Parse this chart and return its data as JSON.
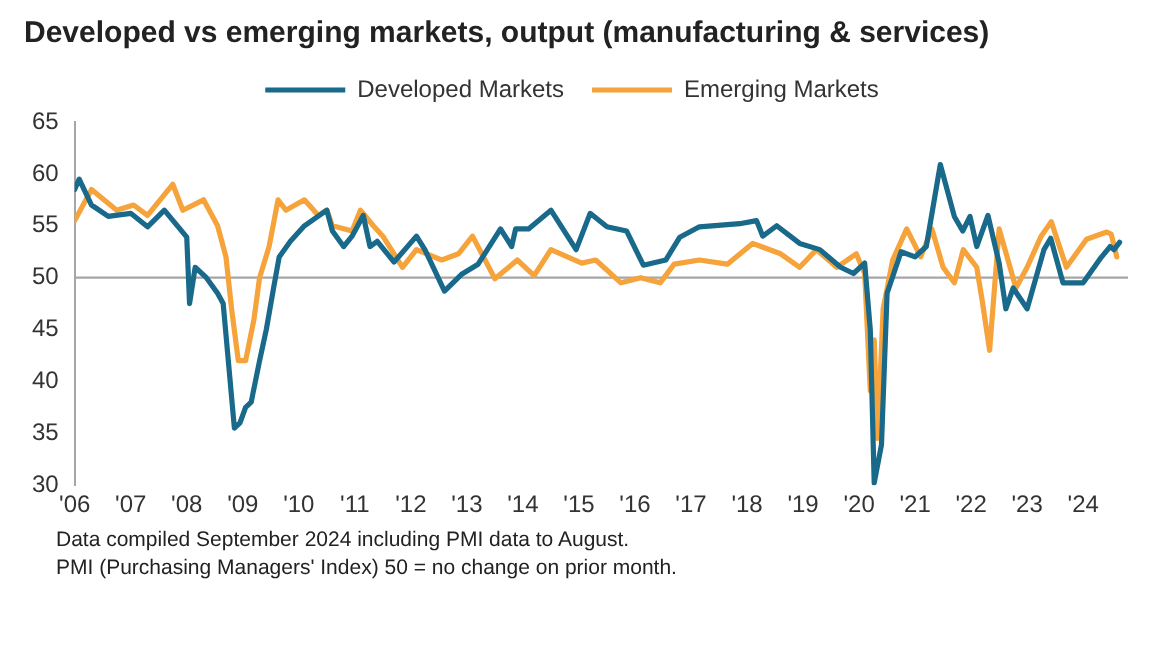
{
  "chart_data": {
    "type": "line",
    "title": "Developed vs emerging markets, output (manufacturing & services)",
    "annotations": [
      "Data compiled September 2024 including PMI data to August.",
      "PMI (Purchasing Managers' Index) 50 = no change on prior month."
    ],
    "xlim": [
      2006,
      2024.8
    ],
    "ylim": [
      30,
      65
    ],
    "xticks": [
      {
        "value": 2006,
        "label": "'06"
      },
      {
        "value": 2007,
        "label": "'07"
      },
      {
        "value": 2008,
        "label": "'08"
      },
      {
        "value": 2009,
        "label": "'09"
      },
      {
        "value": 2010,
        "label": "'10"
      },
      {
        "value": 2011,
        "label": "'11"
      },
      {
        "value": 2012,
        "label": "'12"
      },
      {
        "value": 2013,
        "label": "'13"
      },
      {
        "value": 2014,
        "label": "'14"
      },
      {
        "value": 2015,
        "label": "'15"
      },
      {
        "value": 2016,
        "label": "'16"
      },
      {
        "value": 2017,
        "label": "'17"
      },
      {
        "value": 2018,
        "label": "'18"
      },
      {
        "value": 2019,
        "label": "'19"
      },
      {
        "value": 2020,
        "label": "'20"
      },
      {
        "value": 2021,
        "label": "'21"
      },
      {
        "value": 2022,
        "label": "'22"
      },
      {
        "value": 2023,
        "label": "'23"
      },
      {
        "value": 2024,
        "label": "'24"
      }
    ],
    "yticks": [
      30,
      35,
      40,
      45,
      50,
      55,
      60,
      65
    ],
    "grid": false,
    "legend": "top",
    "marker": "none",
    "line_style": "solid",
    "ref_lines": [
      {
        "axis": "y",
        "value": 50,
        "color": "#a6a6a6"
      }
    ],
    "series": [
      {
        "name": "Developed Markets",
        "color": "#19698a",
        "x": [
          2006.0,
          2006.08,
          2006.3,
          2006.6,
          2007.0,
          2007.3,
          2007.6,
          2008.0,
          2008.05,
          2008.15,
          2008.35,
          2008.55,
          2008.65,
          2008.85,
          2008.95,
          2009.05,
          2009.15,
          2009.3,
          2009.42,
          2009.55,
          2009.65,
          2009.85,
          2010.1,
          2010.5,
          2010.6,
          2010.8,
          2010.95,
          2011.15,
          2011.27,
          2011.4,
          2011.7,
          2012.1,
          2012.25,
          2012.4,
          2012.6,
          2012.9,
          2013.2,
          2013.6,
          2013.8,
          2013.87,
          2014.1,
          2014.5,
          2014.95,
          2015.2,
          2015.5,
          2015.85,
          2016.15,
          2016.55,
          2016.8,
          2017.15,
          2017.87,
          2018.17,
          2018.28,
          2018.53,
          2018.94,
          2019.3,
          2019.67,
          2019.9,
          2020.1,
          2020.2,
          2020.27,
          2020.4,
          2020.5,
          2020.75,
          2021.0,
          2021.2,
          2021.45,
          2021.7,
          2021.85,
          2021.98,
          2022.1,
          2022.3,
          2022.5,
          2022.62,
          2022.75,
          2023.0,
          2023.3,
          2023.42,
          2023.64,
          2024.0,
          2024.3,
          2024.48,
          2024.55,
          2024.65
        ],
        "values": [
          58.5,
          59.5,
          57,
          55.9,
          56.2,
          54.9,
          56.5,
          53.9,
          47.5,
          51,
          50,
          48.5,
          47.5,
          35.5,
          36,
          37.5,
          38,
          42,
          45,
          49,
          52,
          53.5,
          55,
          56.5,
          54.5,
          53,
          54,
          56,
          53,
          53.5,
          51.5,
          54,
          52.7,
          51,
          48.7,
          50.3,
          51.3,
          54.7,
          53,
          54.7,
          54.7,
          56.5,
          52.7,
          56.2,
          54.9,
          54.5,
          51.2,
          51.7,
          53.9,
          54.9,
          55.2,
          55.5,
          54,
          55,
          53.3,
          52.7,
          51,
          50.4,
          51.4,
          45,
          30.2,
          33.9,
          48.5,
          52.5,
          52,
          53,
          60.9,
          55.9,
          54.5,
          55.9,
          53,
          56,
          51.4,
          47,
          49,
          47,
          52.7,
          53.8,
          49.5,
          49.5,
          51.8,
          53,
          52.7,
          53.4
        ]
      },
      {
        "name": "Emerging Markets",
        "color": "#f5a33a",
        "x": [
          2006.0,
          2006.3,
          2006.75,
          2007.05,
          2007.3,
          2007.75,
          2007.93,
          2008.3,
          2008.55,
          2008.7,
          2008.8,
          2008.92,
          2009.05,
          2009.2,
          2009.3,
          2009.47,
          2009.63,
          2009.77,
          2010.1,
          2010.35,
          2010.5,
          2010.6,
          2010.95,
          2011.1,
          2011.33,
          2011.5,
          2011.85,
          2012.1,
          2012.55,
          2012.85,
          2013.1,
          2013.5,
          2013.9,
          2014.2,
          2014.5,
          2015.05,
          2015.3,
          2015.75,
          2016.1,
          2016.45,
          2016.7,
          2017.15,
          2017.65,
          2018.1,
          2018.6,
          2018.94,
          2019.24,
          2019.6,
          2019.95,
          2020.1,
          2020.2,
          2020.27,
          2020.33,
          2020.43,
          2020.6,
          2020.85,
          2021.1,
          2021.3,
          2021.5,
          2021.7,
          2021.86,
          2022.1,
          2022.2,
          2022.33,
          2022.5,
          2022.8,
          2023.0,
          2023.25,
          2023.43,
          2023.7,
          2024.06,
          2024.42,
          2024.5,
          2024.6
        ],
        "values": [
          55.5,
          58.5,
          56.5,
          57,
          56,
          59,
          56.5,
          57.5,
          55,
          52,
          47,
          42,
          42,
          46,
          50,
          53,
          57.5,
          56.5,
          57.5,
          56,
          56.5,
          55,
          54.5,
          56.5,
          55,
          54,
          51,
          52.7,
          51.7,
          52.3,
          54,
          49.9,
          51.7,
          50.2,
          52.7,
          51.4,
          51.7,
          49.5,
          50,
          49.5,
          51.3,
          51.7,
          51.3,
          53.3,
          52.3,
          51,
          52.7,
          51,
          52.3,
          50.4,
          39.1,
          44,
          34.5,
          47,
          51.7,
          54.7,
          52,
          54.7,
          51,
          49.5,
          52.7,
          51,
          47.7,
          43,
          54.7,
          49,
          51,
          54,
          55.4,
          51,
          53.7,
          54.4,
          54.2,
          52
        ]
      }
    ]
  }
}
